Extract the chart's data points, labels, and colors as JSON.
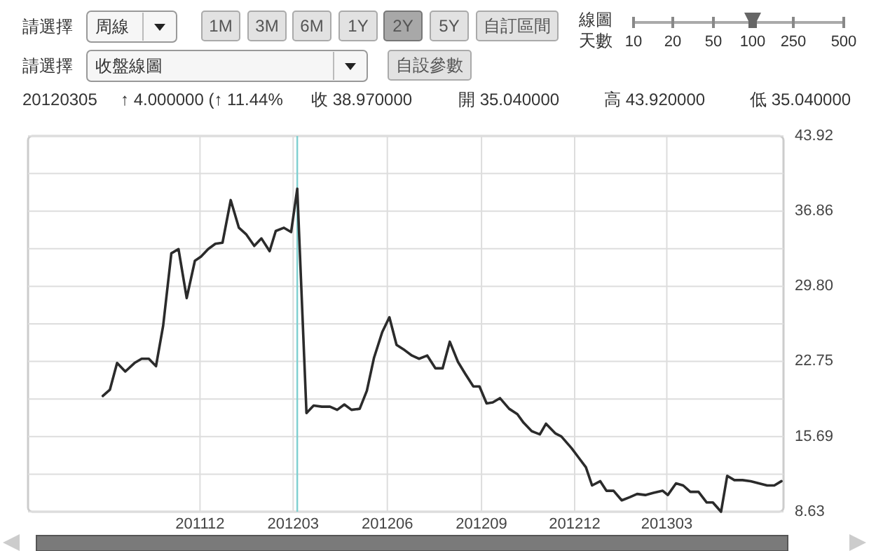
{
  "chart_data": {
    "type": "line",
    "color": "#2b2b2b",
    "x": [
      "2011-08-28",
      "2011-09-04",
      "2011-09-11",
      "2011-09-19",
      "2011-09-28",
      "2011-10-05",
      "2011-10-12",
      "2011-10-19",
      "2011-10-26",
      "2011-11-03",
      "2011-11-10",
      "2011-11-18",
      "2011-11-26",
      "2011-12-02",
      "2011-12-09",
      "2011-12-16",
      "2011-12-23",
      "2011-12-31",
      "2012-01-08",
      "2012-01-15",
      "2012-01-23",
      "2012-01-30",
      "2012-02-07",
      "2012-02-13",
      "2012-02-21",
      "2012-02-28",
      "2012-03-05",
      "2012-03-14",
      "2012-03-21",
      "2012-03-29",
      "2012-04-06",
      "2012-04-13",
      "2012-04-20",
      "2012-04-27",
      "2012-05-05",
      "2012-05-12",
      "2012-05-19",
      "2012-05-27",
      "2012-06-03",
      "2012-06-10",
      "2012-06-18",
      "2012-06-25",
      "2012-07-02",
      "2012-07-10",
      "2012-07-18",
      "2012-07-25",
      "2012-08-01",
      "2012-08-09",
      "2012-08-16",
      "2012-08-24",
      "2012-08-30",
      "2012-09-06",
      "2012-09-12",
      "2012-09-19",
      "2012-09-28",
      "2012-10-06",
      "2012-10-12",
      "2012-10-20",
      "2012-10-28",
      "2012-11-03",
      "2012-11-12",
      "2012-11-18",
      "2012-11-28",
      "2012-12-05",
      "2012-12-12",
      "2012-12-18",
      "2012-12-26",
      "2013-01-01",
      "2013-01-08",
      "2013-01-16",
      "2013-01-24",
      "2013-01-31",
      "2013-02-08",
      "2013-02-16",
      "2013-02-25",
      "2013-03-02",
      "2013-03-10",
      "2013-03-17",
      "2013-03-24",
      "2013-04-01",
      "2013-04-09",
      "2013-04-15",
      "2013-04-23",
      "2013-04-29",
      "2013-05-06",
      "2013-05-14",
      "2013-05-22",
      "2013-05-30",
      "2013-06-07",
      "2013-06-14",
      "2013-06-21"
    ],
    "values": [
      19.5,
      20.1,
      22.6,
      21.8,
      22.6,
      23.0,
      23.0,
      22.3,
      26.1,
      32.9,
      33.3,
      28.7,
      32.2,
      32.6,
      33.3,
      33.8,
      33.9,
      37.9,
      35.3,
      34.7,
      33.6,
      34.3,
      33.1,
      35.0,
      35.3,
      34.9,
      38.97,
      17.9,
      18.6,
      18.5,
      18.5,
      18.2,
      18.7,
      18.2,
      18.3,
      20.0,
      23.1,
      25.5,
      26.9,
      24.3,
      23.8,
      23.3,
      23.0,
      23.3,
      22.1,
      22.1,
      24.6,
      22.7,
      21.6,
      20.4,
      20.4,
      18.8,
      18.9,
      19.3,
      18.3,
      17.8,
      17.0,
      16.2,
      15.9,
      16.9,
      16.0,
      15.7,
      14.6,
      13.7,
      12.8,
      11.1,
      11.5,
      10.6,
      10.6,
      9.7,
      10.0,
      10.3,
      10.2,
      10.4,
      10.6,
      10.2,
      11.3,
      11.1,
      10.5,
      10.5,
      9.5,
      9.5,
      8.63,
      12.0,
      11.6,
      11.6,
      11.5,
      11.3,
      11.1,
      11.1,
      11.5
    ],
    "xlim": [
      "2011-06-16",
      "2013-06-23"
    ],
    "xticks": [
      {
        "value": "2011-12-01",
        "label": "201112"
      },
      {
        "value": "2012-03-01",
        "label": "201203"
      },
      {
        "value": "2012-06-01",
        "label": "201206"
      },
      {
        "value": "2012-09-01",
        "label": "201209"
      },
      {
        "value": "2012-12-01",
        "label": "201212"
      },
      {
        "value": "2013-03-01",
        "label": "201303"
      }
    ],
    "ylim": [
      8.63,
      43.92
    ],
    "yticks": [
      8.63,
      {
        "value": 12.16,
        "label": null
      },
      15.69,
      {
        "value": 19.22,
        "label": null
      },
      22.75,
      {
        "value": 26.275,
        "label": null
      },
      {
        "value": 29.8,
        "label": "29.80"
      },
      {
        "value": 33.33,
        "label": null
      },
      36.86,
      {
        "value": 40.39,
        "label": null
      },
      43.92
    ],
    "grid": true,
    "ref_lines": [
      {
        "axis": "x",
        "value": "2012-03-05",
        "color": "#7fcfd0"
      }
    ],
    "annotations": [
      "請選擇",
      "周線",
      "1M",
      "3M",
      "6M",
      "1Y",
      "2Y",
      "5Y",
      "自訂區間",
      "線圖",
      "天數",
      "10",
      "20",
      "50",
      "100",
      "250",
      "500",
      "請選擇",
      "收盤線圖",
      "自設參數",
      "20120305",
      "↑ 4.000000 (↑ 11.44%",
      "收 38.970000",
      "開 35.040000",
      "高 43.920000",
      "低 35.040000"
    ]
  }
}
